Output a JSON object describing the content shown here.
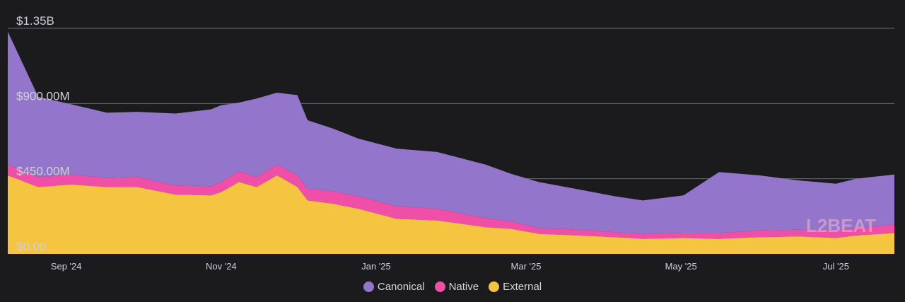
{
  "chart_data": {
    "type": "area",
    "stacked": true,
    "y_ticks": [
      "$0.00",
      "$450.00M",
      "$900.00M",
      "$1.35B"
    ],
    "ylim": [
      0,
      1350
    ],
    "y_unit": "USD millions",
    "x_ticks": [
      "Sep '24",
      "Nov '24",
      "Jan '25",
      "Mar '25",
      "May '25",
      "Jul '25"
    ],
    "x": [
      "2024-08-09",
      "2024-08-21",
      "2024-09-03",
      "2024-09-17",
      "2024-09-29",
      "2024-10-14",
      "2024-10-28",
      "2024-11-01",
      "2024-11-08",
      "2024-11-15",
      "2024-11-23",
      "2024-12-01",
      "2024-12-05",
      "2024-12-15",
      "2024-12-25",
      "2025-01-09",
      "2025-01-25",
      "2025-02-13",
      "2025-02-23",
      "2025-03-06",
      "2025-03-22",
      "2025-04-05",
      "2025-04-16",
      "2025-05-02",
      "2025-05-16",
      "2025-06-01",
      "2025-06-16",
      "2025-07-01",
      "2025-07-09",
      "2025-07-24"
    ],
    "series": [
      {
        "name": "External",
        "color": "#f5c542",
        "values": [
          470,
          400,
          415,
          400,
          400,
          355,
          350,
          370,
          430,
          400,
          470,
          400,
          320,
          300,
          270,
          210,
          200,
          160,
          150,
          120,
          110,
          100,
          90,
          95,
          90,
          100,
          105,
          95,
          110,
          125
        ]
      },
      {
        "name": "Native",
        "color": "#ef4fa6",
        "values": [
          65,
          60,
          60,
          55,
          60,
          55,
          55,
          60,
          65,
          60,
          65,
          70,
          70,
          75,
          75,
          75,
          70,
          55,
          45,
          35,
          35,
          30,
          30,
          30,
          35,
          40,
          40,
          45,
          45,
          50
        ]
      },
      {
        "name": "Canonical",
        "color": "#9376cc",
        "values": [
          795,
          480,
          420,
          390,
          390,
          430,
          460,
          460,
          410,
          470,
          430,
          480,
          410,
          375,
          345,
          345,
          340,
          320,
          285,
          275,
          240,
          215,
          200,
          225,
          365,
          330,
          295,
          280,
          295,
          300
        ]
      }
    ]
  },
  "watermark": "L2BEAT"
}
